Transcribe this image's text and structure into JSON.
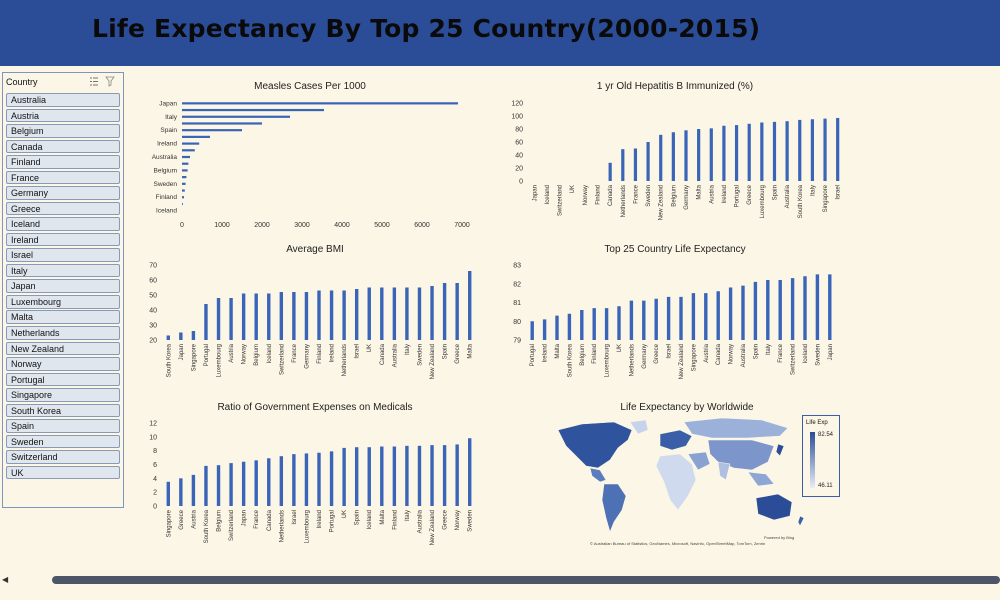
{
  "header": {
    "title": "Life Expectancy By Top 25 Country(2000-2015)"
  },
  "slicer": {
    "title": "Country",
    "items": [
      "Australia",
      "Austria",
      "Belgium",
      "Canada",
      "Finland",
      "France",
      "Germany",
      "Greece",
      "Iceland",
      "Ireland",
      "Israel",
      "Italy",
      "Japan",
      "Luxembourg",
      "Malta",
      "Netherlands",
      "New Zealand",
      "Norway",
      "Portugal",
      "Singapore",
      "South Korea",
      "Spain",
      "Sweden",
      "Switzerland",
      "UK"
    ]
  },
  "chart_data": [
    {
      "id": "measles",
      "type": "bar",
      "orientation": "horizontal",
      "title": "Measles Cases Per 1000",
      "categories": [
        "Japan",
        "",
        "Italy",
        "",
        "Spain",
        "",
        "Ireland",
        "",
        "Australia",
        "",
        "Belgium",
        "",
        "Sweden",
        "",
        "Finland",
        "",
        "Iceland"
      ],
      "values": [
        6900,
        3550,
        2700,
        2000,
        1500,
        700,
        430,
        320,
        200,
        160,
        140,
        110,
        90,
        70,
        50,
        20,
        0
      ],
      "xlim": [
        0,
        7000
      ],
      "xticks": [
        "0",
        "1000",
        "2000",
        "3000",
        "4000",
        "5000",
        "6000",
        "7000"
      ]
    },
    {
      "id": "hepatitis",
      "type": "bar",
      "title": "1 yr Old Hepatitis B Immunized (%)",
      "categories": [
        "Japan",
        "Iceland",
        "Switzerland",
        "UK",
        "Norway",
        "Finland",
        "Canada",
        "Netherlands",
        "France",
        "Sweden",
        "New Zealand",
        "Belgium",
        "Germany",
        "Malta",
        "Austria",
        "Ireland",
        "Portugal",
        "Greece",
        "Luxembourg",
        "Spain",
        "Australia",
        "South Korea",
        "Italy",
        "Singapore",
        "Israel"
      ],
      "values": [
        0,
        0,
        0,
        0,
        0,
        0,
        28,
        49,
        50,
        60,
        71,
        75,
        78,
        80,
        81,
        85,
        86,
        88,
        90,
        91,
        92,
        94,
        95,
        96,
        97
      ],
      "ylim": [
        0,
        120
      ],
      "yticks": [
        "0",
        "20",
        "40",
        "60",
        "80",
        "100",
        "120"
      ]
    },
    {
      "id": "bmi",
      "type": "bar",
      "title": "Average BMI",
      "categories": [
        "South Korea",
        "Japan",
        "Singapore",
        "Portugal",
        "Luxembourg",
        "Austria",
        "Norway",
        "Belgium",
        "Iceland",
        "Switzerland",
        "France",
        "Germany",
        "Finland",
        "Ireland",
        "Netherlands",
        "Israel",
        "UK",
        "Canada",
        "Australia",
        "Italy",
        "Sweden",
        "New Zealand",
        "Spain",
        "Greece",
        "Malta"
      ],
      "values": [
        23,
        25,
        26,
        44,
        48,
        48,
        51,
        51,
        51,
        52,
        52,
        52,
        53,
        53,
        53,
        54,
        55,
        55,
        55,
        55,
        55,
        56,
        58,
        58,
        66
      ],
      "ylim": [
        20,
        70
      ],
      "yticks": [
        "20",
        "30",
        "40",
        "50",
        "60",
        "70"
      ]
    },
    {
      "id": "lifeexp",
      "type": "bar",
      "title": "Top 25 Country Life Expectancy",
      "categories": [
        "Portugal",
        "Ireland",
        "Malta",
        "South Korea",
        "Belgium",
        "Finland",
        "Luxembourg",
        "UK",
        "Netherlands",
        "Germany",
        "Greece",
        "Israel",
        "New Zealand",
        "Singapore",
        "Austria",
        "Canada",
        "Norway",
        "Australia",
        "Spain",
        "Italy",
        "France",
        "Switzerland",
        "Iceland",
        "Sweden",
        "Japan"
      ],
      "values": [
        80.0,
        80.1,
        80.3,
        80.4,
        80.6,
        80.7,
        80.7,
        80.8,
        81.1,
        81.1,
        81.2,
        81.3,
        81.3,
        81.5,
        81.5,
        81.6,
        81.8,
        81.9,
        82.1,
        82.2,
        82.2,
        82.3,
        82.4,
        82.5,
        82.5
      ],
      "ylim": [
        79,
        83
      ],
      "yticks": [
        "79",
        "80",
        "81",
        "82",
        "83"
      ]
    },
    {
      "id": "govexp",
      "type": "bar",
      "title": "Ratio of  Government Expenses on Medicals",
      "categories": [
        "Singapore",
        "Greece",
        "Austria",
        "South Korea",
        "Belgium",
        "Switzerland",
        "Japan",
        "France",
        "Canada",
        "Netherlands",
        "Israel",
        "Luxembourg",
        "Ireland",
        "Portugal",
        "UK",
        "Spain",
        "Iceland",
        "Malta",
        "Finland",
        "Italy",
        "Australia",
        "New Zealand",
        "Greece",
        "Norway",
        "Sweden"
      ],
      "values": [
        3.5,
        4.0,
        4.5,
        5.8,
        5.9,
        6.2,
        6.4,
        6.6,
        6.9,
        7.2,
        7.5,
        7.6,
        7.7,
        7.9,
        8.4,
        8.5,
        8.5,
        8.6,
        8.6,
        8.7,
        8.7,
        8.8,
        8.8,
        8.9,
        9.8
      ],
      "ylim": [
        0,
        12
      ],
      "yticks": [
        "0",
        "2",
        "4",
        "6",
        "8",
        "10",
        "12"
      ]
    }
  ],
  "map": {
    "title": "Life Expectancy by Worldwide",
    "legend_title": "Life Exp",
    "legend_max": "82.54",
    "legend_min": "46.11",
    "powered_by": "Powered by Bing",
    "attribution": "© Australian Bureau of Statistics, GeoNames, Microsoft, Navinfo, OpenStreetMap, TomTom, Zenrin"
  },
  "colors": {
    "bar": "#3a64b7",
    "header": "#2b4d97",
    "background": "#fbf6e6"
  },
  "icons": {
    "multi_select": "multi-select-icon",
    "clear_filter": "clear-filter-icon",
    "scroll_left": "scroll-left-arrow"
  }
}
